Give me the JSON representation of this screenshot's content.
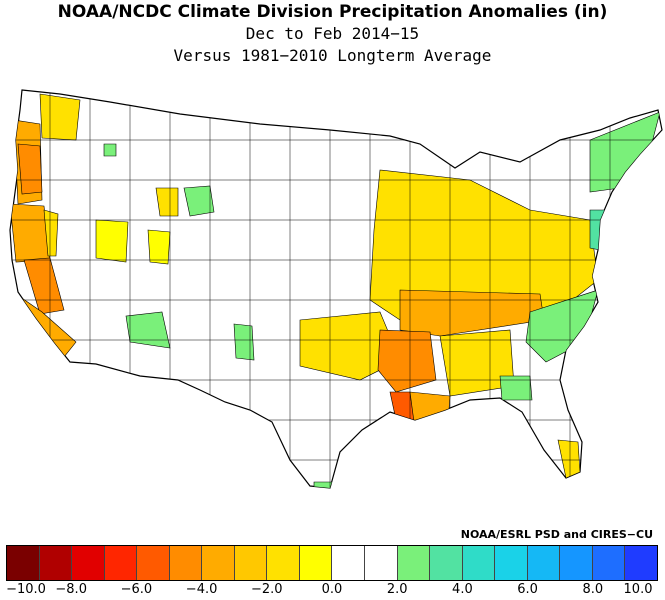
{
  "title": {
    "line1": "NOAA/NCDC Climate Division Precipitation Anomalies (in)",
    "line2": "Dec to Feb 2014−15",
    "line3": "Versus 1981−2010 Longterm Average"
  },
  "credit": "NOAA/ESRL PSD and CIRES−CU",
  "legend": {
    "colors": [
      "#7a0000",
      "#b00000",
      "#e10000",
      "#ff2600",
      "#ff5a00",
      "#ff8c00",
      "#ffab00",
      "#ffc800",
      "#ffe100",
      "#ffff00",
      "#ffffff",
      "#ffffff",
      "#7af07a",
      "#52e2a2",
      "#2fdcc8",
      "#1ad2e8",
      "#15b8f5",
      "#1596ff",
      "#1e6eff",
      "#1f3cff"
    ],
    "tick_labels": [
      "−10.0",
      "−8.0",
      "−6.0",
      "−4.0",
      "−2.0",
      "0.0",
      "2.0",
      "4.0",
      "6.0",
      "8.0",
      "10.0"
    ]
  },
  "map": {
    "type": "climate-division choropleth of the contiguous United States",
    "region_colors": {
      "pacific_northwest_coast": "#ff8c00",
      "northern_california": "#ffab00",
      "central_california": "#ff8c00",
      "southern_california": "#ffab00",
      "washington_inland": "#ffe100",
      "great_basin_pockets": "#ffff00",
      "wyoming_pocket": "#7af07a",
      "new_mexico_pocket": "#7af07a",
      "ohio_valley_midwest": "#ffe100",
      "lower_mississippi": "#ff8c00",
      "louisiana": "#ff5a00",
      "tennessee_kentucky": "#ffab00",
      "southeast_coast": "#7af07a",
      "new_england": "#7af07a",
      "florida_south": "#ffe100",
      "texas_central": "#ffe100"
    }
  }
}
